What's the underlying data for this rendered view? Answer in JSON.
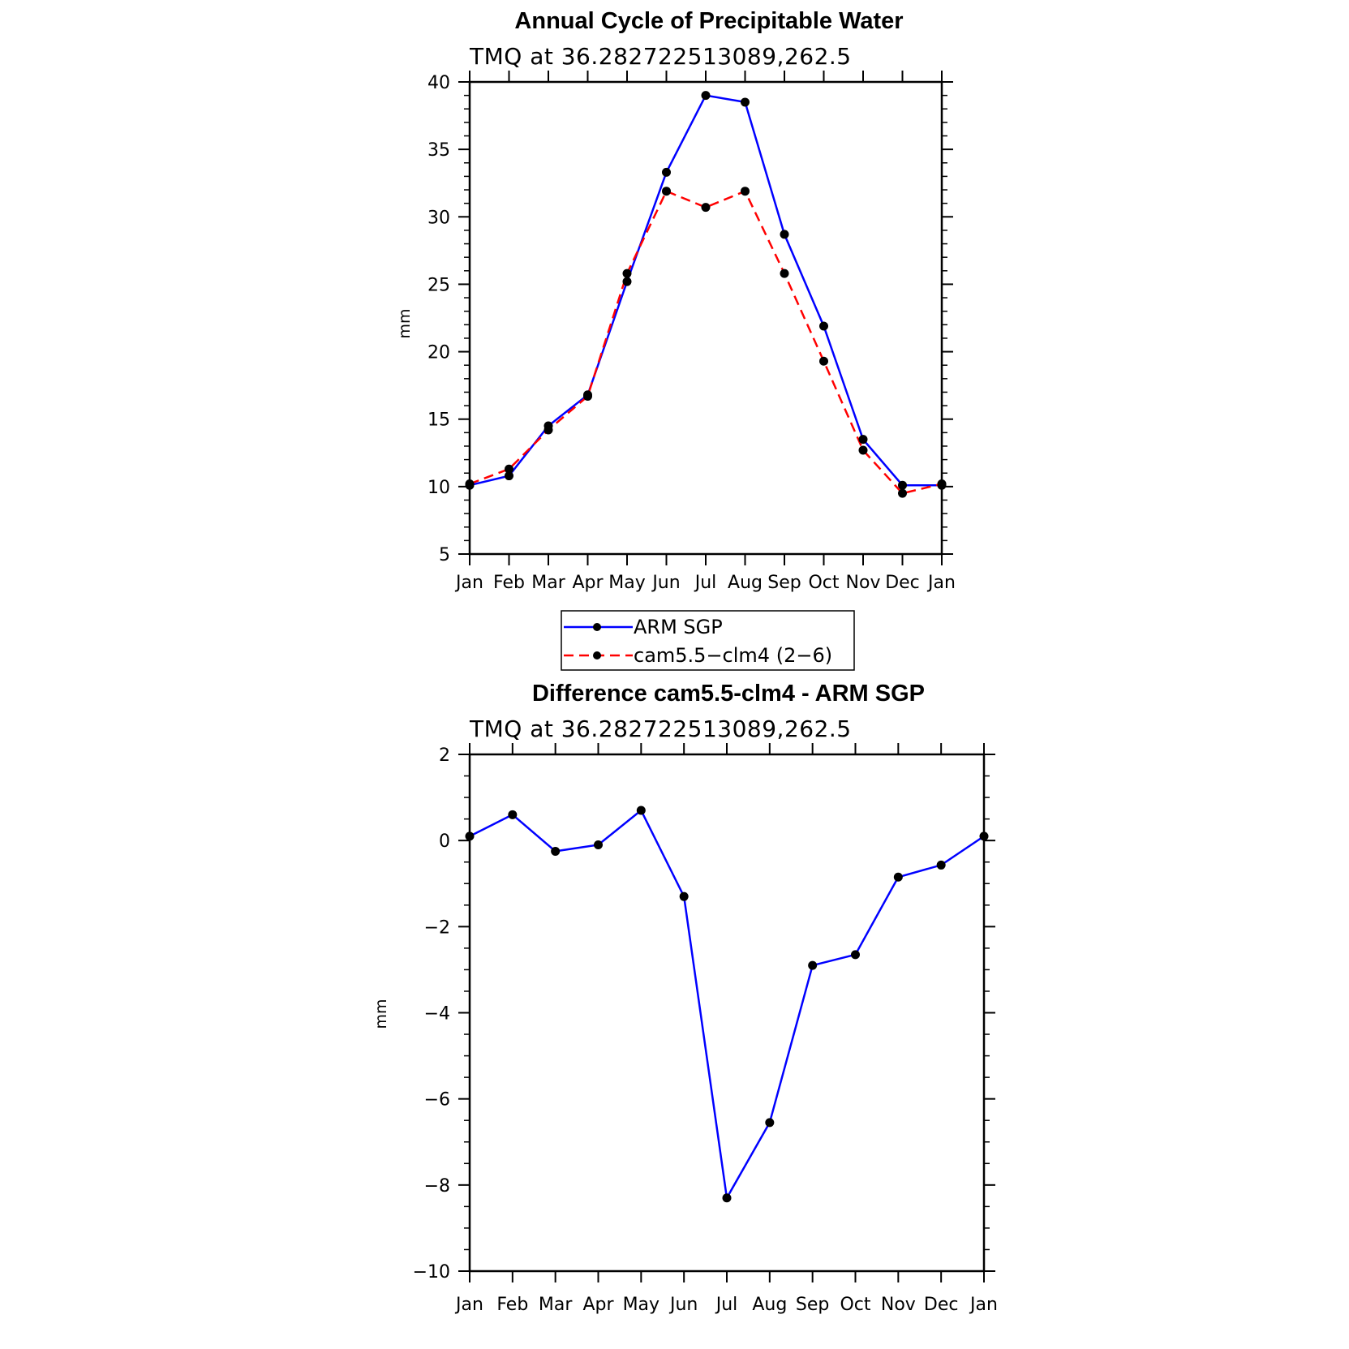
{
  "chart_data": [
    {
      "type": "line",
      "title": "Annual Cycle of Precipitable Water",
      "subtitle": "TMQ at 36.282722513089,262.5",
      "xlabel": "",
      "ylabel": "mm",
      "categories": [
        "Jan",
        "Feb",
        "Mar",
        "Apr",
        "May",
        "Jun",
        "Jul",
        "Aug",
        "Sep",
        "Oct",
        "Nov",
        "Dec",
        "Jan"
      ],
      "ylim": [
        5,
        40
      ],
      "yticks": [
        "5",
        "10",
        "15",
        "20",
        "25",
        "30",
        "35",
        "40"
      ],
      "series": [
        {
          "name": "ARM SGP",
          "color": "#0000ff",
          "dash": "solid",
          "values": [
            10.1,
            10.8,
            14.5,
            16.8,
            25.2,
            33.3,
            39.0,
            38.5,
            28.7,
            21.9,
            13.5,
            10.1,
            10.1
          ]
        },
        {
          "name": "cam5.5−clm4 (2−6)",
          "color": "#ff0000",
          "dash": "dashed",
          "values": [
            10.2,
            11.3,
            14.2,
            16.7,
            25.8,
            31.9,
            30.7,
            31.9,
            25.8,
            19.3,
            12.7,
            9.5,
            10.2
          ]
        }
      ],
      "legend": "below"
    },
    {
      "type": "line",
      "title": "Difference cam5.5-clm4 - ARM SGP",
      "subtitle": "TMQ at 36.282722513089,262.5",
      "xlabel": "",
      "ylabel": "mm",
      "categories": [
        "Jan",
        "Feb",
        "Mar",
        "Apr",
        "May",
        "Jun",
        "Jul",
        "Aug",
        "Sep",
        "Oct",
        "Nov",
        "Dec",
        "Jan"
      ],
      "ylim": [
        -10,
        2
      ],
      "yticks": [
        "−10",
        "−8",
        "−6",
        "−4",
        "−2",
        "0",
        "2"
      ],
      "series": [
        {
          "name": "",
          "color": "#0000ff",
          "dash": "solid",
          "values": [
            0.1,
            0.6,
            -0.25,
            -0.1,
            0.7,
            -1.3,
            -8.3,
            -6.55,
            -2.9,
            -2.65,
            -0.85,
            -0.57,
            0.1
          ]
        }
      ]
    }
  ]
}
